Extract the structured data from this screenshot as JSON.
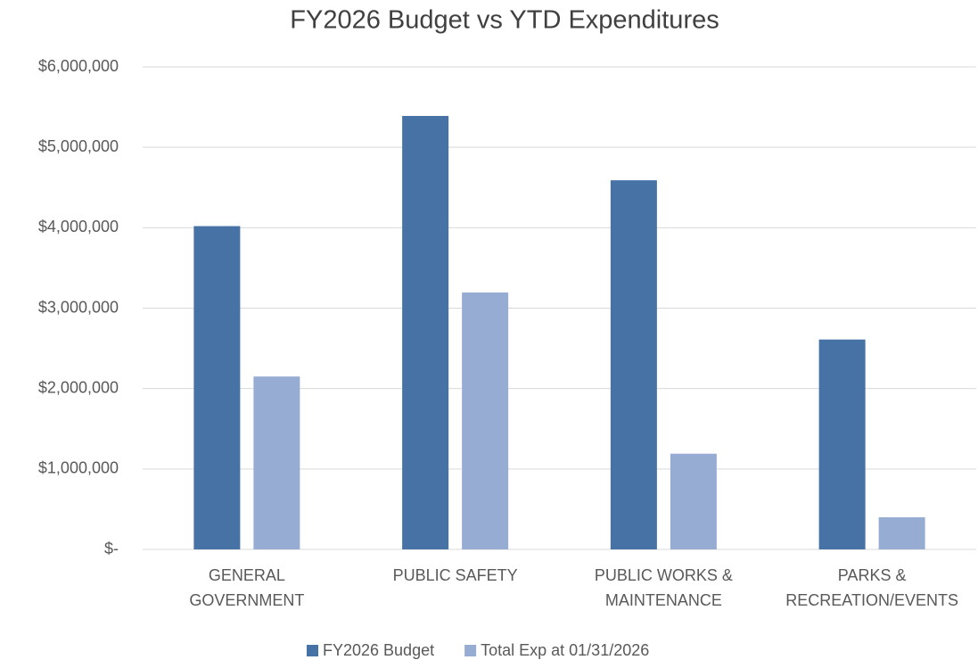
{
  "chart_data": {
    "type": "bar",
    "title": "FY2026 Budget vs YTD Expenditures",
    "categories": [
      "GENERAL GOVERNMENT",
      "PUBLIC SAFETY",
      "PUBLIC WORKS & MAINTENANCE",
      "PARKS & RECREATION/EVENTS"
    ],
    "series": [
      {
        "name": "FY2026 Budget",
        "color": "#4672a6",
        "values": [
          4020000,
          5390000,
          4590000,
          2610000
        ]
      },
      {
        "name": "Total Exp at 01/31/2026",
        "color": "#97acd3",
        "values": [
          2150000,
          3195000,
          1190000,
          400000
        ]
      }
    ],
    "ylim": [
      0,
      6000000
    ],
    "yticks": [
      {
        "value": 0,
        "label": "$-"
      },
      {
        "value": 1000000,
        "label": "$1,000,000"
      },
      {
        "value": 2000000,
        "label": "$2,000,000"
      },
      {
        "value": 3000000,
        "label": "$3,000,000"
      },
      {
        "value": 4000000,
        "label": "$4,000,000"
      },
      {
        "value": 5000000,
        "label": "$5,000,000"
      },
      {
        "value": 6000000,
        "label": "$6,000,000"
      }
    ],
    "grid": true,
    "legend": "bottom"
  }
}
